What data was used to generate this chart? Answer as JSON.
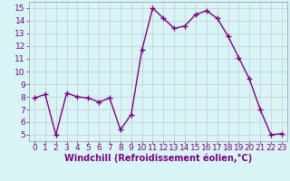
{
  "x": [
    0,
    1,
    2,
    3,
    4,
    5,
    6,
    7,
    8,
    9,
    10,
    11,
    12,
    13,
    14,
    15,
    16,
    17,
    18,
    19,
    20,
    21,
    22,
    23
  ],
  "y": [
    7.9,
    8.2,
    5.0,
    8.3,
    8.0,
    7.9,
    7.6,
    7.9,
    5.4,
    6.6,
    11.7,
    15.0,
    14.2,
    13.4,
    13.6,
    14.5,
    14.8,
    14.2,
    12.8,
    11.1,
    9.4,
    7.0,
    5.0,
    5.1
  ],
  "line_color": "#800080",
  "marker": "+",
  "markersize": 4,
  "linewidth": 1.0,
  "xlabel": "Windchill (Refroidissement éolien,°C)",
  "xlim": [
    -0.5,
    23.5
  ],
  "ylim": [
    4.5,
    15.5
  ],
  "yticks": [
    5,
    6,
    7,
    8,
    9,
    10,
    11,
    12,
    13,
    14,
    15
  ],
  "xticks": [
    0,
    1,
    2,
    3,
    4,
    5,
    6,
    7,
    8,
    9,
    10,
    11,
    12,
    13,
    14,
    15,
    16,
    17,
    18,
    19,
    20,
    21,
    22,
    23
  ],
  "bg_color": "#d8f5f5",
  "grid_color": "#c8c8d8",
  "tick_label_color": "#800080",
  "xlabel_color": "#800080",
  "xlabel_fontsize": 7,
  "tick_fontsize": 6.5,
  "spine_color": "#a0a0c0"
}
